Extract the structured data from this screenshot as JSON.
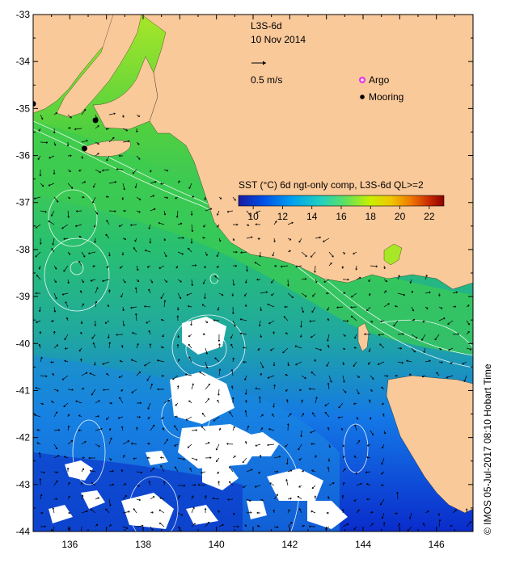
{
  "product": "L3S-6d",
  "date": "10 Nov 2014",
  "scale_label": "0.5 m/s",
  "legend": {
    "argo": "Argo",
    "mooring": "Mooring",
    "argo_color": "#e633e6",
    "mooring_color": "#000000"
  },
  "colorbar": {
    "title": "SST (°C) 6d ngt-only comp, L3S-6d QL>=2",
    "ticks": [
      "10",
      "12",
      "14",
      "16",
      "18",
      "20",
      "22"
    ],
    "min": 9,
    "max": 23,
    "colors": [
      "#1a1aa0",
      "#0050e6",
      "#00a0f0",
      "#20d0c0",
      "#60e060",
      "#c8f000",
      "#f0c800",
      "#f07800",
      "#c82800",
      "#8c0000"
    ]
  },
  "axes": {
    "x_ticks": [
      "136",
      "138",
      "140",
      "142",
      "144",
      "146"
    ],
    "y_ticks": [
      "-33",
      "-34",
      "-35",
      "-36",
      "-37",
      "-38",
      "-39",
      "-40",
      "-41",
      "-42",
      "-43",
      "-44"
    ]
  },
  "colors": {
    "land": "#fac99a",
    "ocean_warm": "#a8e628",
    "ocean_mid": "#30d060",
    "ocean_cool": "#28b890",
    "ocean_cold": "#1478e6",
    "ocean_coldest": "#0a2ccc",
    "cloud": "#ffffff"
  },
  "moorings": [
    {
      "lon": 135.0,
      "lat": -34.9
    },
    {
      "lon": 136.7,
      "lat": -35.25
    },
    {
      "lon": 136.4,
      "lat": -35.85
    }
  ],
  "credit": "© IMOS 05-Jul-2017 08:10 Hobart Time"
}
